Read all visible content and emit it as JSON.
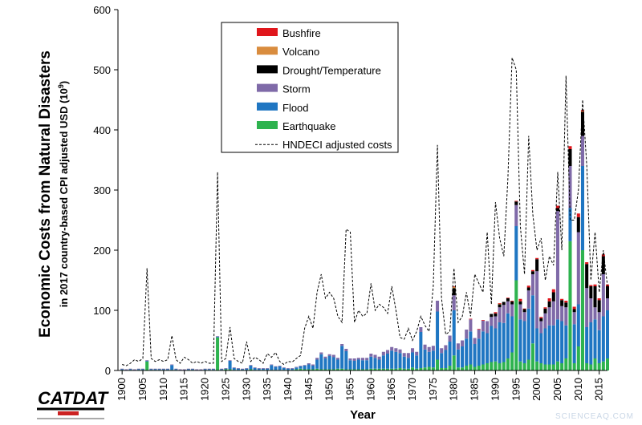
{
  "chart_data": {
    "type": "bar",
    "stacked": true,
    "ylabel": "Economic Costs from Natural Disasters",
    "ylabel_sub_prefix": "in 2017 country-based CPI adjusted USD (10",
    "ylabel_sub_exp": "9",
    "ylabel_sub_suffix": ")",
    "xlabel": "Year",
    "ylim": [
      0,
      600
    ],
    "yticks": [
      0,
      100,
      200,
      300,
      400,
      500,
      600
    ],
    "xlim": [
      1899,
      2017
    ],
    "xticks": [
      1900,
      1905,
      1910,
      1915,
      1920,
      1925,
      1930,
      1935,
      1940,
      1945,
      1950,
      1955,
      1960,
      1965,
      1970,
      1975,
      1980,
      1985,
      1990,
      1995,
      2000,
      2005,
      2010,
      2015
    ],
    "legend_position": "top-center",
    "grid": false,
    "years": [
      1900,
      1901,
      1902,
      1903,
      1904,
      1905,
      1906,
      1907,
      1908,
      1909,
      1910,
      1911,
      1912,
      1913,
      1914,
      1915,
      1916,
      1917,
      1918,
      1919,
      1920,
      1921,
      1922,
      1923,
      1924,
      1925,
      1926,
      1927,
      1928,
      1929,
      1930,
      1931,
      1932,
      1933,
      1934,
      1935,
      1936,
      1937,
      1938,
      1939,
      1940,
      1941,
      1942,
      1943,
      1944,
      1945,
      1946,
      1947,
      1948,
      1949,
      1950,
      1951,
      1952,
      1953,
      1954,
      1955,
      1956,
      1957,
      1958,
      1959,
      1960,
      1961,
      1962,
      1963,
      1964,
      1965,
      1966,
      1967,
      1968,
      1969,
      1970,
      1971,
      1972,
      1973,
      1974,
      1975,
      1976,
      1977,
      1978,
      1979,
      1980,
      1981,
      1982,
      1983,
      1984,
      1985,
      1986,
      1987,
      1988,
      1989,
      1990,
      1991,
      1992,
      1993,
      1994,
      1995,
      1996,
      1997,
      1998,
      1999,
      2000,
      2001,
      2002,
      2003,
      2004,
      2005,
      2006,
      2007,
      2008,
      2009,
      2010,
      2011,
      2012,
      2013,
      2014,
      2015,
      2016,
      2017
    ],
    "series": [
      {
        "name": "Earthquake",
        "color": "#2eb34f",
        "values": [
          1,
          0,
          1,
          0,
          1,
          1,
          15,
          1,
          1,
          1,
          1,
          1,
          1,
          1,
          0,
          0,
          1,
          1,
          0,
          0,
          1,
          1,
          1,
          55,
          1,
          2,
          2,
          1,
          1,
          1,
          1,
          2,
          1,
          1,
          1,
          1,
          1,
          1,
          1,
          1,
          1,
          1,
          2,
          3,
          2,
          2,
          2,
          3,
          2,
          2,
          2,
          2,
          3,
          3,
          2,
          2,
          2,
          2,
          2,
          2,
          3,
          3,
          3,
          3,
          3,
          3,
          3,
          4,
          3,
          3,
          5,
          3,
          4,
          5,
          6,
          5,
          18,
          4,
          4,
          8,
          25,
          5,
          5,
          8,
          10,
          6,
          8,
          10,
          12,
          14,
          15,
          12,
          14,
          20,
          30,
          150,
          15,
          12,
          18,
          45,
          15,
          12,
          10,
          10,
          10,
          15,
          12,
          20,
          215,
          12,
          40,
          200,
          12,
          10,
          20,
          12,
          15,
          20
        ]
      },
      {
        "name": "Flood",
        "color": "#1f76c2",
        "values": [
          1,
          1,
          1,
          1,
          1,
          1,
          1,
          1,
          1,
          1,
          1,
          1,
          8,
          1,
          1,
          1,
          1,
          1,
          1,
          1,
          1,
          1,
          1,
          1,
          1,
          1,
          14,
          3,
          2,
          1,
          2,
          6,
          3,
          2,
          2,
          2,
          8,
          5,
          6,
          3,
          2,
          2,
          3,
          4,
          6,
          8,
          6,
          15,
          25,
          18,
          22,
          20,
          15,
          38,
          30,
          15,
          14,
          16,
          15,
          15,
          20,
          18,
          15,
          22,
          25,
          30,
          28,
          25,
          20,
          18,
          25,
          22,
          60,
          30,
          25,
          28,
          80,
          25,
          30,
          40,
          75,
          30,
          35,
          45,
          55,
          38,
          45,
          55,
          50,
          60,
          55,
          68,
          65,
          75,
          60,
          90,
          70,
          70,
          85,
          80,
          55,
          50,
          60,
          65,
          65,
          70,
          70,
          55,
          55,
          65,
          70,
          140,
          60,
          70,
          65,
          55,
          75,
          80
        ]
      },
      {
        "name": "Storm",
        "color": "#7f6aa8",
        "values": [
          1,
          1,
          1,
          1,
          1,
          1,
          1,
          1,
          1,
          1,
          1,
          1,
          1,
          1,
          1,
          1,
          1,
          1,
          1,
          1,
          1,
          1,
          1,
          1,
          1,
          1,
          1,
          1,
          1,
          1,
          1,
          1,
          1,
          1,
          1,
          1,
          1,
          1,
          1,
          1,
          1,
          1,
          1,
          1,
          1,
          2,
          2,
          3,
          3,
          3,
          3,
          4,
          3,
          3,
          4,
          3,
          4,
          3,
          4,
          4,
          5,
          5,
          5,
          6,
          6,
          6,
          6,
          6,
          6,
          8,
          7,
          6,
          8,
          8,
          8,
          8,
          18,
          8,
          8,
          10,
          25,
          10,
          10,
          15,
          20,
          10,
          15,
          18,
          20,
          15,
          20,
          25,
          30,
          20,
          20,
          35,
          25,
          15,
          30,
          35,
          95,
          20,
          25,
          30,
          40,
          180,
          25,
          30,
          70,
          20,
          120,
          50,
          65,
          40,
          20,
          30,
          70,
          20
        ]
      },
      {
        "name": "Drought/Temperature",
        "color": "#000000",
        "values": [
          0,
          0,
          0,
          0,
          0,
          0,
          0,
          0,
          0,
          0,
          0,
          0,
          0,
          0,
          0,
          0,
          0,
          0,
          0,
          0,
          0,
          0,
          0,
          0,
          0,
          0,
          0,
          0,
          0,
          0,
          0,
          0,
          0,
          0,
          0,
          0,
          0,
          0,
          0,
          0,
          0,
          0,
          0,
          0,
          0,
          0,
          0,
          0,
          0,
          0,
          0,
          0,
          0,
          0,
          0,
          0,
          0,
          0,
          0,
          0,
          0,
          0,
          0,
          0,
          0,
          0,
          0,
          0,
          0,
          0,
          0,
          0,
          0,
          0,
          0,
          0,
          0,
          0,
          0,
          0,
          12,
          0,
          0,
          0,
          0,
          0,
          0,
          0,
          0,
          5,
          5,
          5,
          5,
          5,
          5,
          6,
          5,
          5,
          5,
          5,
          20,
          5,
          8,
          10,
          15,
          5,
          10,
          8,
          28,
          5,
          25,
          40,
          40,
          20,
          35,
          20,
          30,
          20
        ]
      },
      {
        "name": "Volcano",
        "color": "#d98c3e",
        "values": [
          0,
          0,
          0,
          0,
          0,
          0,
          0,
          0,
          0,
          0,
          0,
          0,
          0,
          0,
          0,
          0,
          0,
          0,
          0,
          0,
          0,
          0,
          0,
          0,
          0,
          0,
          0,
          0,
          0,
          0,
          0,
          0,
          0,
          0,
          0,
          0,
          0,
          0,
          0,
          0,
          0,
          0,
          0,
          0,
          0,
          0,
          0,
          0,
          0,
          0,
          0,
          0,
          0,
          0,
          0,
          0,
          0,
          0,
          0,
          0,
          0,
          0,
          0,
          0,
          0,
          0,
          0,
          0,
          0,
          0,
          0,
          0,
          0,
          0,
          0,
          0,
          0,
          0,
          0,
          0,
          2,
          0,
          0,
          0,
          0,
          0,
          0,
          0,
          0,
          0,
          0,
          1,
          0,
          0,
          0,
          0,
          0,
          0,
          0,
          0,
          0,
          0,
          0,
          0,
          0,
          0,
          0,
          0,
          0,
          0,
          0,
          1,
          0,
          0,
          0,
          0,
          0,
          0
        ]
      },
      {
        "name": "Bushfire",
        "color": "#e0161c",
        "values": [
          0,
          0,
          0,
          0,
          0,
          0,
          0,
          0,
          0,
          0,
          0,
          0,
          0,
          0,
          0,
          0,
          0,
          0,
          0,
          0,
          0,
          0,
          0,
          0,
          0,
          0,
          0,
          0,
          0,
          0,
          0,
          0,
          0,
          0,
          0,
          0,
          0,
          0,
          0,
          0,
          0,
          0,
          0,
          0,
          0,
          0,
          0,
          0,
          0,
          0,
          0,
          0,
          0,
          0,
          0,
          0,
          0,
          0,
          0,
          0,
          0,
          0,
          0,
          0,
          0,
          0,
          0,
          0,
          0,
          0,
          0,
          0,
          0,
          0,
          0,
          0,
          0,
          0,
          0,
          0,
          1,
          0,
          0,
          0,
          1,
          0,
          1,
          1,
          0,
          0,
          2,
          1,
          0,
          1,
          1,
          1,
          4,
          1,
          3,
          2,
          2,
          2,
          2,
          5,
          5,
          4,
          2,
          3,
          5,
          4,
          6,
          2,
          3,
          2,
          3,
          3,
          3,
          3
        ]
      },
      {
        "name": "HNDECI adjusted costs",
        "kind": "line",
        "color": "#000000",
        "values": [
          10,
          8,
          12,
          18,
          15,
          20,
          170,
          20,
          15,
          18,
          15,
          18,
          58,
          18,
          12,
          22,
          18,
          12,
          15,
          12,
          15,
          12,
          12,
          330,
          15,
          20,
          72,
          20,
          15,
          12,
          48,
          15,
          22,
          18,
          12,
          28,
          22,
          30,
          15,
          10,
          15,
          14,
          20,
          25,
          70,
          90,
          70,
          130,
          160,
          120,
          130,
          120,
          90,
          80,
          235,
          230,
          80,
          100,
          90,
          95,
          145,
          100,
          110,
          105,
          95,
          140,
          100,
          55,
          52,
          70,
          50,
          65,
          90,
          75,
          65,
          140,
          375,
          120,
          60,
          65,
          170,
          80,
          90,
          130,
          90,
          160,
          145,
          130,
          230,
          110,
          280,
          220,
          190,
          320,
          520,
          500,
          240,
          160,
          390,
          260,
          200,
          220,
          150,
          190,
          175,
          330,
          200,
          490,
          250,
          250,
          300,
          450,
          340,
          150,
          230,
          130,
          200,
          140
        ]
      }
    ]
  },
  "legend": [
    {
      "label": "Bushfire",
      "color": "#e0161c",
      "kind": "box"
    },
    {
      "label": "Volcano",
      "color": "#d98c3e",
      "kind": "box"
    },
    {
      "label": "Drought/Temperature",
      "color": "#000000",
      "kind": "box"
    },
    {
      "label": "Storm",
      "color": "#7f6aa8",
      "kind": "box"
    },
    {
      "label": "Flood",
      "color": "#1f76c2",
      "kind": "box"
    },
    {
      "label": "Earthquake",
      "color": "#2eb34f",
      "kind": "box"
    },
    {
      "label": "HNDECI adjusted costs",
      "color": "#000000",
      "kind": "dashed-line"
    }
  ],
  "logo": {
    "text": "CATDAT"
  },
  "watermark": {
    "text": "SCIENCEAQ.COM"
  }
}
